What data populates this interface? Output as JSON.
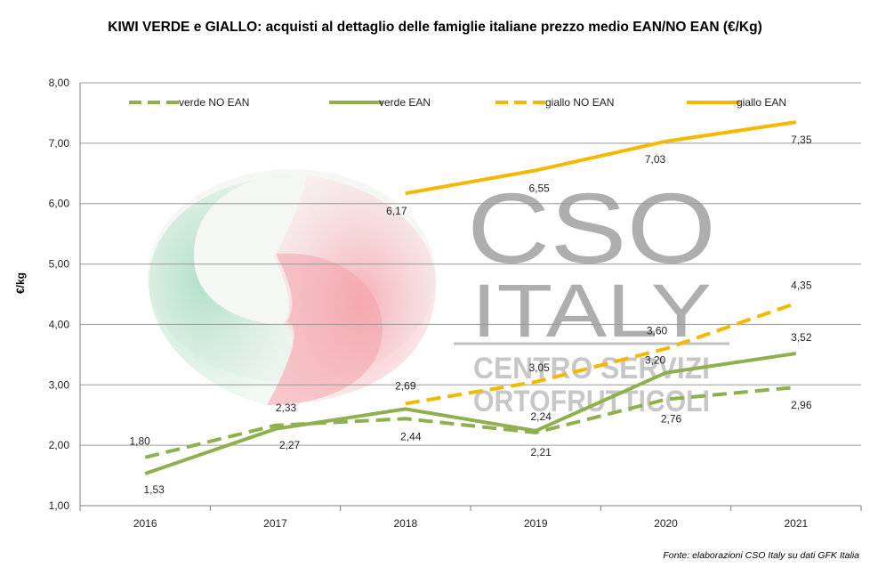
{
  "chart_data": {
    "type": "line",
    "title": "KIWI VERDE e GIALLO: acquisti al dettaglio delle famiglie italiane prezzo medio EAN/NO EAN (€/Kg)",
    "ylabel": "€/kg",
    "xlabel": "",
    "categories": [
      "2016",
      "2017",
      "2018",
      "2019",
      "2020",
      "2021"
    ],
    "ylim": [
      1,
      8
    ],
    "yticks": [
      "1,00",
      "2,00",
      "3,00",
      "4,00",
      "5,00",
      "6,00",
      "7,00",
      "8,00"
    ],
    "grid": true,
    "legend_position": "top",
    "series": [
      {
        "name": "verde NO EAN",
        "color": "#8fb04f",
        "dashed": true,
        "values": [
          1.8,
          2.33,
          2.44,
          2.21,
          2.76,
          2.96
        ],
        "labels": [
          "1,80",
          "2,33",
          "2,44",
          "2,21",
          "2,76",
          "2,96"
        ]
      },
      {
        "name": "verde EAN",
        "color": "#8fb04f",
        "dashed": false,
        "values": [
          1.53,
          2.27,
          2.6,
          2.24,
          3.2,
          3.52
        ],
        "labels": [
          "1,53",
          "2,27",
          "",
          "2,24",
          "3,20",
          "3,52"
        ]
      },
      {
        "name": "giallo NO EAN",
        "color": "#f5b800",
        "dashed": true,
        "values": [
          null,
          null,
          2.69,
          3.05,
          3.6,
          4.35
        ],
        "labels": [
          "",
          "",
          "2,69",
          "3,05",
          "3,60",
          "4,35"
        ]
      },
      {
        "name": "giallo EAN",
        "color": "#f5b800",
        "dashed": false,
        "values": [
          null,
          null,
          6.17,
          6.55,
          7.03,
          7.35
        ],
        "labels": [
          "",
          "",
          "6,17",
          "6,55",
          "7,03",
          "7,35"
        ]
      }
    ],
    "source_note": "Fonte: elaborazioni CSO Italy su dati GFK Italia"
  },
  "watermark": {
    "line1": "CSO",
    "line2": "ITALY",
    "line3": "CENTRO SERVIZI",
    "line4": "ORTOFRUTTICOLI",
    "green": "#a9dcc0",
    "pink": "#f6a9b0"
  }
}
